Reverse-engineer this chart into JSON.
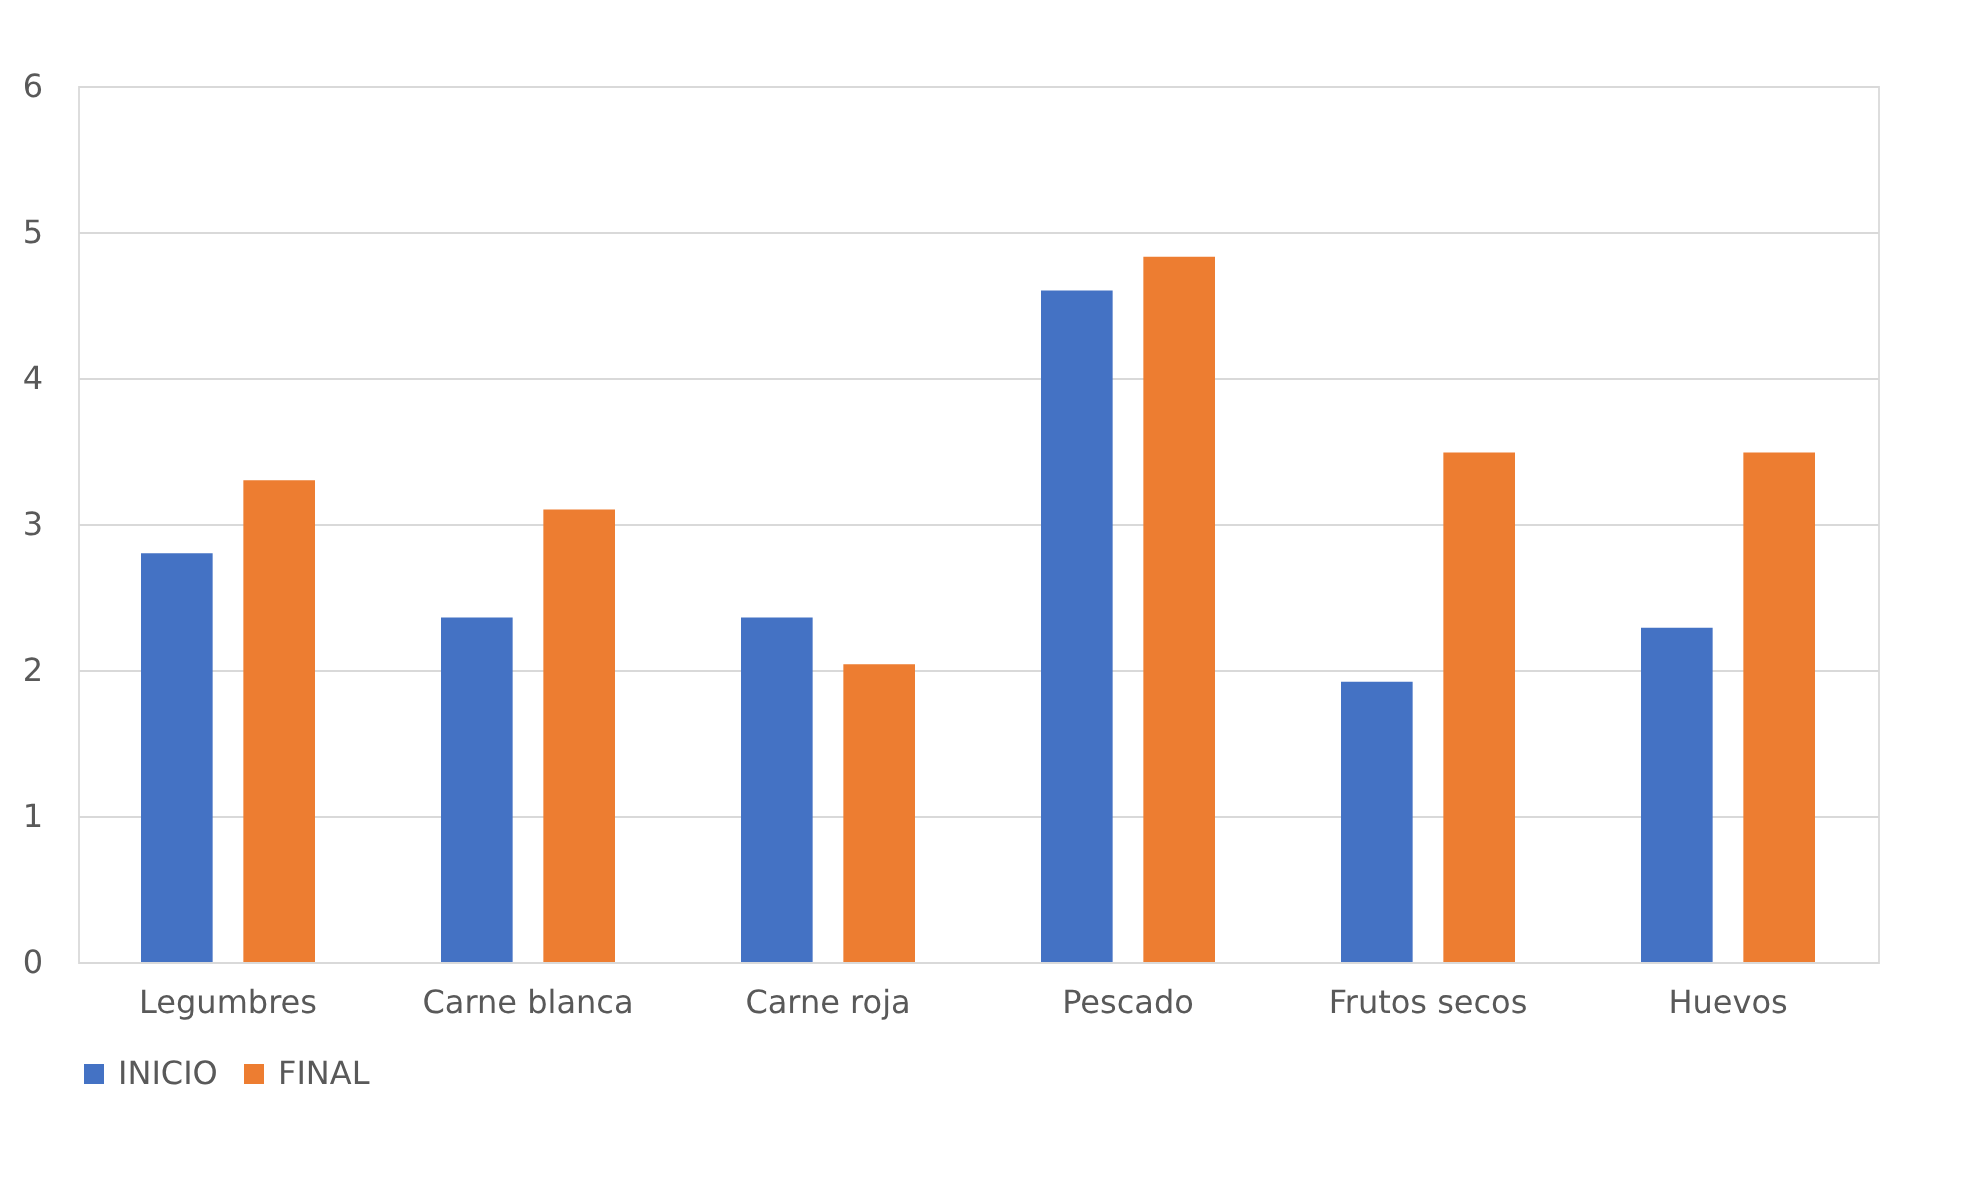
{
  "chart_data": {
    "type": "bar",
    "categories": [
      "Legumbres",
      "Carne blanca",
      "Carne roja",
      "Pescado",
      "Frutos secos",
      "Huevos"
    ],
    "series": [
      {
        "name": "INICIO",
        "color": "#4472c4",
        "values": [
          2.8,
          2.36,
          2.36,
          4.6,
          1.92,
          2.29
        ]
      },
      {
        "name": "FINAL",
        "color": "#ed7d31",
        "values": [
          3.3,
          3.1,
          2.04,
          4.83,
          3.49,
          3.49
        ]
      }
    ],
    "ylim": [
      0,
      6
    ],
    "yticks": [
      0,
      1,
      2,
      3,
      4,
      5,
      6
    ],
    "grid": "y",
    "legend": "bottom"
  }
}
